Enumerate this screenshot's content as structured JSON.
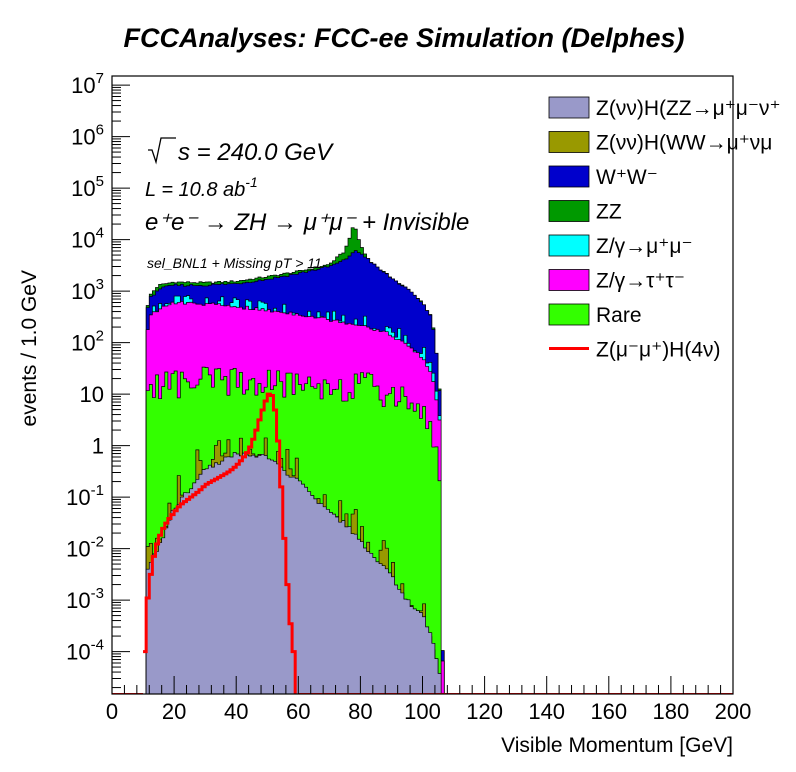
{
  "chart_data": {
    "type": "area",
    "title": "FCCAnalyses: FCC-ee Simulation (Delphes)",
    "xlabel": "Visible Momentum [GeV]",
    "ylabel": "events / 1.0 GeV",
    "xlim": [
      0,
      200
    ],
    "ylim": [
      1.5e-05,
      15000000.0
    ],
    "y_scale": "log",
    "x_ticks": [
      "0",
      "20",
      "40",
      "60",
      "80",
      "100",
      "120",
      "140",
      "160",
      "180",
      "200"
    ],
    "y_ticks": [
      {
        "base": "10",
        "exp": "7"
      },
      {
        "base": "10",
        "exp": "6"
      },
      {
        "base": "10",
        "exp": "5"
      },
      {
        "base": "10",
        "exp": "4"
      },
      {
        "base": "10",
        "exp": "3"
      },
      {
        "base": "10",
        "exp": "2"
      },
      {
        "base": "10",
        "exp": ""
      },
      {
        "base": "1",
        "exp": ""
      },
      {
        "base": "10",
        "exp": "-1"
      },
      {
        "base": "10",
        "exp": "-2"
      },
      {
        "base": "10",
        "exp": "-3"
      },
      {
        "base": "10",
        "exp": "-4"
      }
    ],
    "annotations": {
      "sqrts": "s = 240.0 GeV",
      "lumi_prefix": "L = 10.8 ab",
      "lumi_exp": "-1",
      "process": "e⁺e⁻ → ZH → μ⁺μ⁻ + Invisible",
      "selection": "sel_BNL1 + Missing pT > 11"
    },
    "legend_position": "top-right",
    "stack_cumulative_profiles": {
      "x": [
        11,
        12,
        15,
        20,
        30,
        40,
        50,
        60,
        70,
        75,
        78,
        80,
        82,
        85,
        90,
        95,
        100,
        103,
        104,
        105,
        106,
        107
      ],
      "ZvvH_ZZ": [
        0.003,
        0.005,
        0.01,
        0.06,
        0.35,
        0.7,
        0.6,
        0.2,
        0.05,
        0.03,
        0.02,
        0.015,
        0.01,
        0.006,
        0.003,
        0.001,
        0.0005,
        0.0002,
        0.0001,
        5e-05,
        3e-05,
        0
      ],
      "ZvvH_WW": [
        0.004,
        0.006,
        0.012,
        0.07,
        0.38,
        0.72,
        0.62,
        0.21,
        0.052,
        0.032,
        0.021,
        0.016,
        0.011,
        0.0065,
        0.0032,
        0.0011,
        0.00055,
        0.00022,
        0.00011,
        6e-05,
        4e-05,
        0
      ],
      "Rare": [
        10,
        12,
        15,
        16,
        17,
        17,
        16,
        15,
        15,
        14,
        14,
        14,
        13,
        12,
        10,
        8,
        5,
        2,
        1,
        0.5,
        0.2,
        0
      ],
      "Ztautau": [
        100,
        300,
        450,
        600,
        560,
        500,
        420,
        360,
        280,
        250,
        230,
        220,
        210,
        180,
        140,
        90,
        50,
        25,
        12,
        5,
        2,
        0
      ],
      "Zmumu": [
        110,
        320,
        470,
        620,
        580,
        520,
        440,
        380,
        300,
        270,
        250,
        240,
        230,
        200,
        160,
        110,
        65,
        35,
        18,
        8,
        3,
        0
      ],
      "WW": [
        300,
        700,
        1100,
        1300,
        1300,
        1400,
        1700,
        2200,
        3000,
        4000,
        6000,
        5500,
        4500,
        3000,
        1800,
        1100,
        600,
        300,
        120,
        30,
        5,
        0
      ],
      "ZZ": [
        330,
        800,
        1300,
        1500,
        1450,
        1550,
        1900,
        2400,
        3300,
        6000,
        20000,
        8000,
        4600,
        3050,
        1820,
        1110,
        605,
        302,
        121,
        30,
        5,
        0
      ]
    },
    "signal": {
      "name": "Z(μ⁻μ⁺)H(4ν)",
      "x": [
        10.5,
        11,
        12,
        13,
        14,
        15,
        16,
        18,
        20,
        22,
        25,
        28,
        30,
        32,
        35,
        38,
        40,
        42,
        44,
        45,
        46,
        47,
        48,
        49,
        50,
        51,
        52,
        53,
        54,
        55,
        56,
        57,
        58,
        58.5
      ],
      "values": [
        0.0001,
        0.0006,
        0.002,
        0.005,
        0.01,
        0.015,
        0.022,
        0.035,
        0.05,
        0.07,
        0.095,
        0.13,
        0.17,
        0.2,
        0.25,
        0.32,
        0.4,
        0.55,
        0.8,
        1.1,
        1.6,
        2.5,
        4,
        6,
        9,
        11,
        8,
        3,
        0.5,
        0.05,
        0.005,
        0.0008,
        0.00015,
        0.0001
      ]
    },
    "series": [
      {
        "key": "ZvvH_ZZ",
        "name": "Z(νν)H(ZZ→μ⁺μ⁻ν⁺",
        "color": "#9999c9"
      },
      {
        "key": "ZvvH_WW",
        "name": "Z(νν)H(WW→μ⁺νμ",
        "color": "#999900"
      },
      {
        "key": "WW",
        "name": "W⁺W⁻",
        "color": "#0000cc"
      },
      {
        "key": "ZZ",
        "name": "ZZ",
        "color": "#009900"
      },
      {
        "key": "Zmumu",
        "name": "Z/γ→μ⁺μ⁻",
        "color": "#00ffff"
      },
      {
        "key": "Ztautau",
        "name": "Z/γ→τ⁺τ⁻",
        "color": "#ff00ff"
      },
      {
        "key": "Rare",
        "name": "Rare",
        "color": "#33ff00"
      },
      {
        "key": "signal",
        "name": "Z(μ⁻μ⁺)H(4ν)",
        "color": "#ff0000"
      }
    ]
  }
}
